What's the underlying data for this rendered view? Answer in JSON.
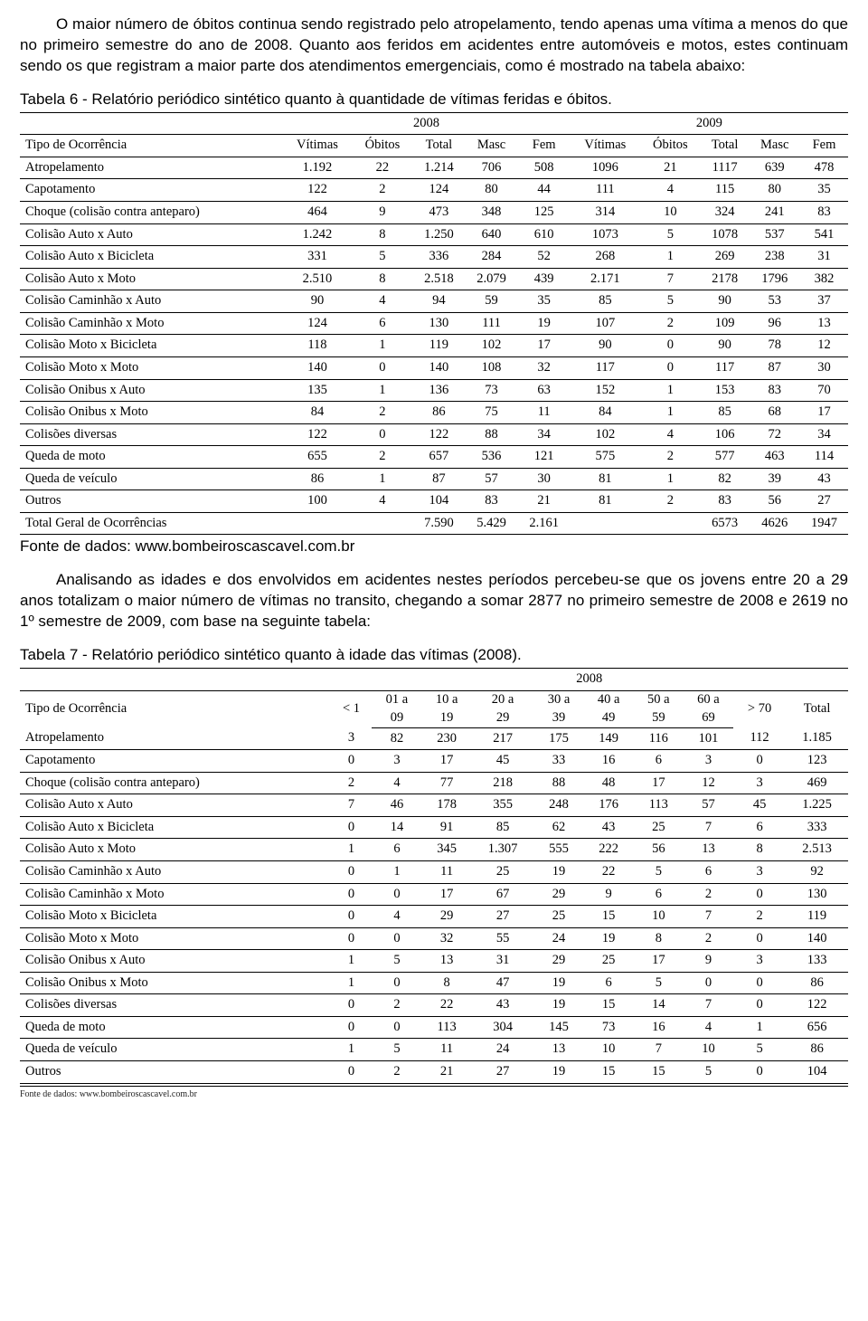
{
  "paragraphs": {
    "p1": "O maior número de óbitos continua sendo registrado pelo atropelamento, tendo apenas uma vítima a menos do que no primeiro semestre do ano de 2008. Quanto aos feridos em acidentes entre automóveis e motos, estes continuam sendo os que registram a maior parte dos atendimentos emergenciais, como é mostrado na tabela abaixo:",
    "caption6": "Tabela 6 - Relatório periódico sintético quanto à quantidade de vítimas feridas e óbitos.",
    "source6": "Fonte de dados: www.bombeiroscascavel.com.br",
    "p2": "Analisando as idades e dos envolvidos em acidentes nestes períodos percebeu-se que os jovens entre 20 a 29 anos totalizam o maior número de vítimas no transito, chegando a somar 2877 no primeiro semestre de 2008 e 2619 no 1º semestre de 2009, com base na seguinte tabela:",
    "caption7": "Tabela 7 - Relatório periódico sintético quanto à idade das vítimas (2008).",
    "footsrc7": "Fonte de dados: www.bombeiroscascavel.com.br"
  },
  "table6": {
    "year_left": "2008",
    "year_right": "2009",
    "col_type": "Tipo de Ocorrência",
    "cols": [
      "Vítimas",
      "Óbitos",
      "Total",
      "Masc",
      "Fem",
      "Vítimas",
      "Óbitos",
      "Total",
      "Masc",
      "Fem"
    ],
    "rows": [
      [
        "Atropelamento",
        "1.192",
        "22",
        "1.214",
        "706",
        "508",
        "1096",
        "21",
        "1117",
        "639",
        "478"
      ],
      [
        "Capotamento",
        "122",
        "2",
        "124",
        "80",
        "44",
        "111",
        "4",
        "115",
        "80",
        "35"
      ],
      [
        "Choque (colisão contra anteparo)",
        "464",
        "9",
        "473",
        "348",
        "125",
        "314",
        "10",
        "324",
        "241",
        "83"
      ],
      [
        "Colisão Auto x Auto",
        "1.242",
        "8",
        "1.250",
        "640",
        "610",
        "1073",
        "5",
        "1078",
        "537",
        "541"
      ],
      [
        "Colisão Auto x Bicicleta",
        "331",
        "5",
        "336",
        "284",
        "52",
        "268",
        "1",
        "269",
        "238",
        "31"
      ],
      [
        "Colisão Auto x Moto",
        "2.510",
        "8",
        "2.518",
        "2.079",
        "439",
        "2.171",
        "7",
        "2178",
        "1796",
        "382"
      ],
      [
        "Colisão Caminhão x Auto",
        "90",
        "4",
        "94",
        "59",
        "35",
        "85",
        "5",
        "90",
        "53",
        "37"
      ],
      [
        "Colisão Caminhão x Moto",
        "124",
        "6",
        "130",
        "111",
        "19",
        "107",
        "2",
        "109",
        "96",
        "13"
      ],
      [
        "Colisão Moto x Bicicleta",
        "118",
        "1",
        "119",
        "102",
        "17",
        "90",
        "0",
        "90",
        "78",
        "12"
      ],
      [
        "Colisão Moto x Moto",
        "140",
        "0",
        "140",
        "108",
        "32",
        "117",
        "0",
        "117",
        "87",
        "30"
      ],
      [
        "Colisão Onibus x Auto",
        "135",
        "1",
        "136",
        "73",
        "63",
        "152",
        "1",
        "153",
        "83",
        "70"
      ],
      [
        "Colisão Onibus x Moto",
        "84",
        "2",
        "86",
        "75",
        "11",
        "84",
        "1",
        "85",
        "68",
        "17"
      ],
      [
        "Colisões diversas",
        "122",
        "0",
        "122",
        "88",
        "34",
        "102",
        "4",
        "106",
        "72",
        "34"
      ],
      [
        "Queda de moto",
        "655",
        "2",
        "657",
        "536",
        "121",
        "575",
        "2",
        "577",
        "463",
        "114"
      ],
      [
        "Queda de veículo",
        "86",
        "1",
        "87",
        "57",
        "30",
        "81",
        "1",
        "82",
        "39",
        "43"
      ],
      [
        "Outros",
        "100",
        "4",
        "104",
        "83",
        "21",
        "81",
        "2",
        "83",
        "56",
        "27"
      ],
      [
        "Total Geral de Ocorrências",
        "",
        "",
        "7.590",
        "5.429",
        "2.161",
        "",
        "",
        "6573",
        "4626",
        "1947"
      ]
    ]
  },
  "table7": {
    "year": "2008",
    "col_type": "Tipo de Ocorrência",
    "cols_top": [
      "< 1",
      "01 a",
      "10 a",
      "20 a",
      "30 a",
      "40 a",
      "50 a",
      "60 a",
      "> 70",
      "Total"
    ],
    "cols_bot": [
      "",
      "09",
      "19",
      "29",
      "39",
      "49",
      "59",
      "69",
      "",
      ""
    ],
    "rows": [
      [
        "Atropelamento",
        "3",
        "82",
        "230",
        "217",
        "175",
        "149",
        "116",
        "101",
        "112",
        "1.185"
      ],
      [
        "Capotamento",
        "0",
        "3",
        "17",
        "45",
        "33",
        "16",
        "6",
        "3",
        "0",
        "123"
      ],
      [
        "Choque (colisão contra anteparo)",
        "2",
        "4",
        "77",
        "218",
        "88",
        "48",
        "17",
        "12",
        "3",
        "469"
      ],
      [
        "Colisão Auto x Auto",
        "7",
        "46",
        "178",
        "355",
        "248",
        "176",
        "113",
        "57",
        "45",
        "1.225"
      ],
      [
        "Colisão Auto x Bicicleta",
        "0",
        "14",
        "91",
        "85",
        "62",
        "43",
        "25",
        "7",
        "6",
        "333"
      ],
      [
        "Colisão Auto x Moto",
        "1",
        "6",
        "345",
        "1.307",
        "555",
        "222",
        "56",
        "13",
        "8",
        "2.513"
      ],
      [
        "Colisão Caminhão x Auto",
        "0",
        "1",
        "11",
        "25",
        "19",
        "22",
        "5",
        "6",
        "3",
        "92"
      ],
      [
        "Colisão Caminhão x Moto",
        "0",
        "0",
        "17",
        "67",
        "29",
        "9",
        "6",
        "2",
        "0",
        "130"
      ],
      [
        "Colisão Moto x Bicicleta",
        "0",
        "4",
        "29",
        "27",
        "25",
        "15",
        "10",
        "7",
        "2",
        "119"
      ],
      [
        "Colisão Moto x Moto",
        "0",
        "0",
        "32",
        "55",
        "24",
        "19",
        "8",
        "2",
        "0",
        "140"
      ],
      [
        "Colisão Onibus x Auto",
        "1",
        "5",
        "13",
        "31",
        "29",
        "25",
        "17",
        "9",
        "3",
        "133"
      ],
      [
        "Colisão Onibus x Moto",
        "1",
        "0",
        "8",
        "47",
        "19",
        "6",
        "5",
        "0",
        "0",
        "86"
      ],
      [
        "Colisões diversas",
        "0",
        "2",
        "22",
        "43",
        "19",
        "15",
        "14",
        "7",
        "0",
        "122"
      ],
      [
        "Queda de moto",
        "0",
        "0",
        "113",
        "304",
        "145",
        "73",
        "16",
        "4",
        "1",
        "656"
      ],
      [
        "Queda de veículo",
        "1",
        "5",
        "11",
        "24",
        "13",
        "10",
        "7",
        "10",
        "5",
        "86"
      ],
      [
        "Outros",
        "0",
        "2",
        "21",
        "27",
        "19",
        "15",
        "15",
        "5",
        "0",
        "104"
      ]
    ]
  }
}
